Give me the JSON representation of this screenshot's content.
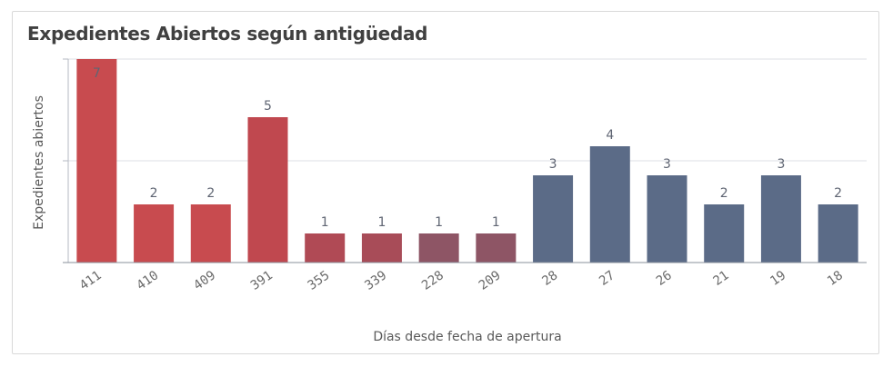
{
  "chart_data": {
    "type": "bar",
    "title": "Expedientes Abiertos según antigüedad",
    "xlabel": "Días desde fecha de apertura",
    "ylabel": "Expedientes abiertos",
    "categories": [
      "411",
      "410",
      "409",
      "391",
      "355",
      "339",
      "228",
      "209",
      "28",
      "27",
      "26",
      "21",
      "19",
      "18"
    ],
    "values": [
      7,
      2,
      2,
      5,
      1,
      1,
      1,
      1,
      3,
      4,
      3,
      2,
      3,
      2
    ],
    "value_labels": [
      "7",
      "2",
      "2",
      "5",
      "1",
      "1",
      "1",
      "1",
      "3",
      "4",
      "3",
      "2",
      "3",
      "2"
    ],
    "colors": [
      "#c84b4f",
      "#c84b4f",
      "#c84b4f",
      "#c0484f",
      "#b04a55",
      "#a84c58",
      "#8e5565",
      "#8e5565",
      "#5b6b87",
      "#5b6b87",
      "#5b6b87",
      "#5b6b87",
      "#5b6b87",
      "#5b6b87"
    ],
    "ylim": [
      0,
      7
    ],
    "grid": true,
    "legend": "none"
  }
}
